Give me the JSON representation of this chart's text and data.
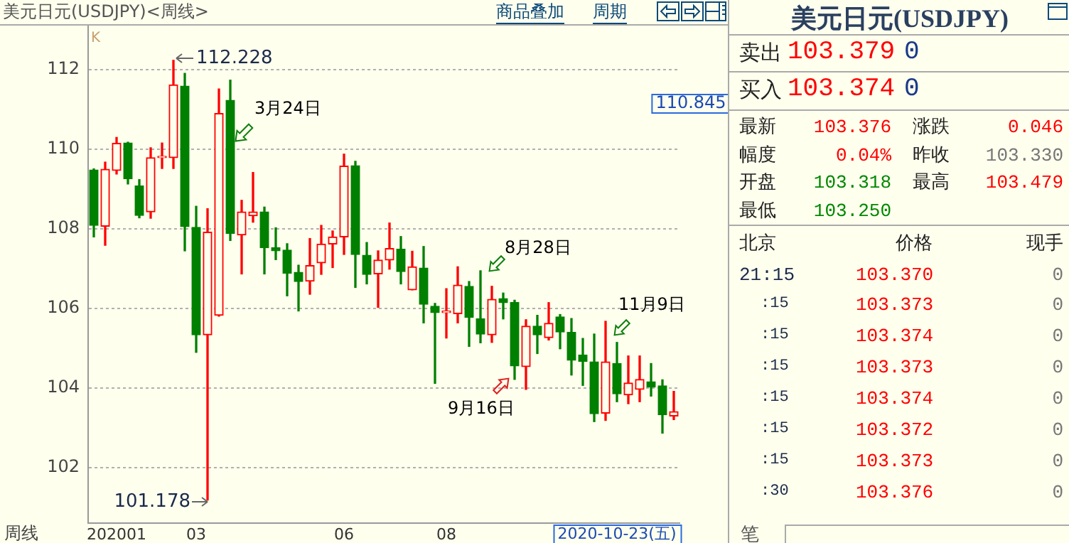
{
  "chart_data": [
    {
      "type": "candlestick",
      "title": "美元日元(USDJPY)<周线>",
      "categories": [
        null,
        null,
        "202001",
        null,
        null,
        null,
        null,
        null,
        null,
        "03",
        null,
        null,
        null,
        null,
        null,
        null,
        null,
        null,
        null,
        null,
        null,
        null,
        "06",
        null,
        null,
        null,
        null,
        null,
        null,
        null,
        null,
        "08",
        null,
        null,
        null,
        null,
        null,
        null,
        null,
        null,
        null,
        null,
        null,
        null,
        null,
        null,
        null,
        null,
        null,
        null,
        null,
        null
      ],
      "ohlc": [
        [
          109.47,
          109.5,
          107.79,
          108.08
        ],
        [
          108.06,
          109.67,
          107.58,
          109.49
        ],
        [
          109.46,
          110.29,
          109.37,
          110.14
        ],
        [
          110.15,
          110.17,
          109.12,
          109.25
        ],
        [
          109.07,
          109.23,
          108.27,
          108.33
        ],
        [
          108.42,
          110.03,
          108.26,
          109.78
        ],
        [
          109.78,
          110.15,
          109.51,
          109.8
        ],
        [
          109.78,
          112.228,
          109.51,
          111.61
        ],
        [
          111.58,
          111.9,
          107.44,
          108.05
        ],
        [
          108.03,
          108.56,
          104.89,
          105.33
        ],
        [
          105.33,
          108.5,
          101.178,
          107.91
        ],
        [
          105.82,
          111.51,
          105.8,
          110.89
        ],
        [
          111.22,
          111.73,
          107.7,
          107.88
        ],
        [
          107.84,
          108.71,
          106.86,
          108.42
        ],
        [
          108.32,
          109.41,
          108.16,
          108.42
        ],
        [
          108.42,
          108.54,
          106.86,
          107.52
        ],
        [
          107.52,
          108.02,
          107.22,
          107.44
        ],
        [
          107.46,
          107.62,
          106.31,
          106.88
        ],
        [
          106.9,
          107.08,
          105.93,
          106.67
        ],
        [
          106.68,
          107.75,
          106.35,
          107.07
        ],
        [
          107.14,
          108.08,
          106.85,
          107.61
        ],
        [
          107.61,
          107.94,
          107.02,
          107.79
        ],
        [
          107.79,
          109.87,
          107.35,
          109.57
        ],
        [
          109.58,
          109.69,
          106.52,
          107.35
        ],
        [
          107.33,
          107.65,
          106.61,
          106.85
        ],
        [
          106.86,
          107.44,
          106.02,
          107.21
        ],
        [
          107.21,
          108.14,
          106.98,
          107.5
        ],
        [
          107.48,
          107.8,
          106.61,
          106.92
        ],
        [
          106.46,
          107.43,
          106.46,
          107.04
        ],
        [
          107.01,
          107.55,
          105.63,
          106.1
        ],
        [
          106.05,
          106.12,
          104.11,
          105.89
        ],
        [
          105.89,
          106.49,
          105.25,
          105.9
        ],
        [
          105.86,
          107.04,
          105.63,
          106.58
        ],
        [
          106.55,
          106.67,
          105.04,
          105.77
        ],
        [
          105.73,
          106.94,
          105.13,
          105.35
        ],
        [
          105.33,
          106.55,
          105.14,
          106.22
        ],
        [
          106.24,
          106.38,
          105.73,
          106.14
        ],
        [
          106.14,
          106.2,
          104.21,
          104.55
        ],
        [
          104.53,
          105.71,
          103.96,
          105.55
        ],
        [
          105.55,
          105.82,
          104.86,
          105.33
        ],
        [
          105.26,
          106.14,
          105.2,
          105.62
        ],
        [
          105.78,
          105.84,
          104.98,
          105.4
        ],
        [
          105.39,
          105.74,
          104.32,
          104.69
        ],
        [
          104.82,
          105.24,
          104.06,
          104.66
        ],
        [
          104.65,
          105.35,
          103.15,
          103.35
        ],
        [
          103.36,
          105.67,
          103.18,
          104.65
        ],
        [
          104.61,
          105.14,
          103.65,
          103.85
        ],
        [
          103.82,
          104.8,
          103.6,
          104.12
        ],
        [
          103.96,
          104.8,
          103.65,
          104.21
        ],
        [
          104.15,
          104.61,
          103.79,
          104.02
        ],
        [
          104.05,
          104.2,
          102.86,
          103.32
        ],
        [
          103.29,
          103.91,
          103.2,
          103.4
        ]
      ],
      "colors": [
        "#008000",
        "#ff0000",
        "#ff0000",
        "#008000",
        "#008000",
        "#ff0000",
        "#ff0000",
        "#ff0000",
        "#008000",
        "#008000",
        "#ff0000",
        "#ff0000",
        "#008000",
        "#ff0000",
        "#ff0000",
        "#008000",
        "#008000",
        "#008000",
        "#008000",
        "#ff0000",
        "#ff0000",
        "#ff0000",
        "#ff0000",
        "#008000",
        "#008000",
        "#ff0000",
        "#ff0000",
        "#008000",
        "#ff0000",
        "#008000",
        "#008000",
        "#ff0000",
        "#ff0000",
        "#008000",
        "#008000",
        "#ff0000",
        "#008000",
        "#008000",
        "#ff0000",
        "#008000",
        "#ff0000",
        "#008000",
        "#008000",
        "#008000",
        "#008000",
        "#ff0000",
        "#008000",
        "#ff0000",
        "#ff0000",
        "#008000",
        "#008000",
        "#ff0000"
      ],
      "ylim": [
        100.6,
        113.1
      ],
      "yticks": [
        102,
        104,
        106,
        108,
        110,
        112
      ],
      "grid": "y",
      "annotations": [
        "K",
        "112.228",
        "3月24日",
        "110.845",
        "8月28日",
        "11月9日",
        "9月16日",
        "101.178",
        "2020-10-23(五)",
        "周线",
        "商品叠加",
        "周期"
      ]
    },
    {
      "type": "other",
      "title": "美元日元(USDJPY)",
      "annotations": [
        "卖出",
        "103.379",
        "0",
        "买入",
        "103.374",
        "0",
        "最新",
        "103.376",
        "涨跌",
        "0.046",
        "幅度",
        "0.04%",
        "昨收",
        "103.330",
        "开盘",
        "103.318",
        "最高",
        "103.479",
        "最低",
        "103.250",
        "北京",
        "价格",
        "现手",
        "21:15",
        "103.370",
        "0",
        ":15",
        "103.373",
        "0",
        ":15",
        "103.374",
        "0",
        ":15",
        "103.373",
        "0",
        ":15",
        "103.374",
        "0",
        ":15",
        "103.372",
        "0",
        ":15",
        "103.373",
        "0",
        ":30",
        "103.376",
        "0",
        "笔"
      ]
    }
  ]
}
